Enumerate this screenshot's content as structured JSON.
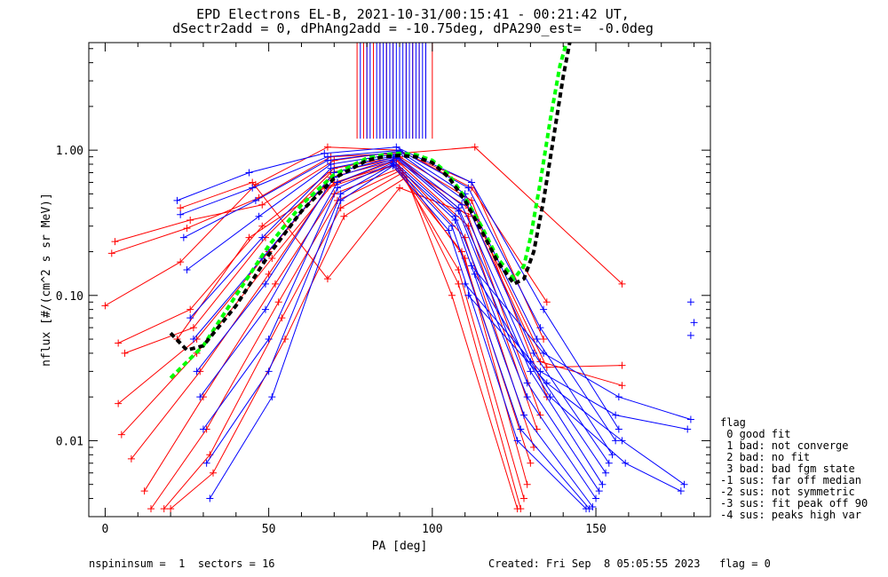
{
  "title": {
    "line1": "EPD Electrons EL-B, 2021-10-31/00:15:41 - 00:21:42 UT,",
    "line2": "dSectr2add = 0, dPhAng2add = -10.75deg, dPA290_est=  -0.0deg"
  },
  "legend": {
    "title": "flag",
    "items": [
      " 0 good fit",
      " 1 bad: not converge",
      " 2 bad: no fit",
      " 3 bad: bad fgm state",
      "-1 sus: far off median",
      "-2 sus: not symmetric",
      "-3 sus: fit peak off 90",
      "-4 sus: peaks high var"
    ]
  },
  "footer": {
    "left": "nspininsum =  1  sectors = 16",
    "right": "Created: Fri Sep  8 05:05:55 2023   flag = 0"
  },
  "colors": {
    "series_a": "#ff0000",
    "series_b": "#0000ff",
    "fit_1": "#00ff00",
    "fit_2": "#000000"
  },
  "chart_data": {
    "type": "line",
    "xlabel": "PA [deg]",
    "ylabel": "nflux [#/(cm^2 s sr MeV)]",
    "xlim": [
      -5,
      185
    ],
    "ylim": [
      0.003,
      5.5
    ],
    "yscale": "log",
    "xticks": [
      0,
      50,
      100,
      150
    ],
    "xtick_labels": [
      "0",
      "50",
      "100",
      "150"
    ],
    "yticks": [
      0.01,
      0.1,
      1.0
    ],
    "ytick_labels": [
      "0.01",
      "0.10",
      "1.00"
    ],
    "grid": false,
    "series": [
      {
        "color": "red",
        "marker": "+",
        "curves": [
          {
            "x": [
              0,
              23,
              46,
              68,
              90,
              112,
              135
            ],
            "y": [
              0.085,
              0.17,
              0.58,
              1.05,
              1.0,
              0.55,
              0.09
            ]
          },
          {
            "x": [
              2,
              25,
              47,
              69,
              90,
              113,
              158
            ],
            "y": [
              0.195,
              0.29,
              0.47,
              0.9,
              0.95,
              1.05,
              0.12
            ]
          },
          {
            "x": [
              3,
              26,
              48,
              70,
              90,
              112,
              134
            ],
            "y": [
              0.235,
              0.33,
              0.42,
              0.85,
              0.98,
              0.6,
              0.05
            ]
          },
          {
            "x": [
              4,
              26,
              48,
              70,
              90,
              112,
              135
            ],
            "y": [
              0.047,
              0.08,
              0.3,
              0.75,
              0.9,
              0.45,
              0.02
            ]
          },
          {
            "x": [
              6,
              27,
              49,
              69,
              90,
              111,
              133
            ],
            "y": [
              0.04,
              0.06,
              0.25,
              0.7,
              0.88,
              0.35,
              0.015
            ]
          },
          {
            "x": [
              4,
              28,
              50,
              69,
              89,
              111,
              132
            ],
            "y": [
              0.018,
              0.05,
              0.2,
              0.65,
              0.85,
              0.3,
              0.012
            ]
          },
          {
            "x": [
              5,
              28,
              51,
              70,
              89,
              110,
              131
            ],
            "y": [
              0.011,
              0.04,
              0.18,
              0.6,
              0.8,
              0.25,
              0.009
            ]
          },
          {
            "x": [
              8,
              29,
              50,
              68,
              88,
              109,
              130
            ],
            "y": [
              0.0075,
              0.03,
              0.14,
              0.55,
              0.78,
              0.2,
              0.007
            ]
          },
          {
            "x": [
              12,
              30,
              52,
              70,
              90,
              110,
              129
            ],
            "y": [
              0.0045,
              0.02,
              0.12,
              0.5,
              0.75,
              0.18,
              0.005
            ]
          },
          {
            "x": [
              14,
              31,
              53,
              71,
              90,
              108,
              128
            ],
            "y": [
              0.0034,
              0.012,
              0.09,
              0.45,
              0.72,
              0.15,
              0.004
            ]
          },
          {
            "x": [
              18,
              32,
              54,
              72,
              91,
              108,
              127
            ],
            "y": [
              0.0034,
              0.008,
              0.07,
              0.4,
              0.7,
              0.12,
              0.0034
            ]
          },
          {
            "x": [
              20,
              33,
              55,
              73,
              92,
              106,
              126
            ],
            "y": [
              0.0034,
              0.006,
              0.05,
              0.35,
              0.65,
              0.1,
              0.0034
            ]
          },
          {
            "x": [
              23,
              45,
              68,
              90,
              113,
              135,
              158
            ],
            "y": [
              0.4,
              0.6,
              0.13,
              0.55,
              0.35,
              0.032,
              0.033
            ]
          },
          {
            "x": [
              22,
              44,
              67,
              89,
              111,
              133,
              158
            ],
            "y": [
              0.05,
              0.25,
              0.55,
              0.85,
              0.4,
              0.035,
              0.024
            ]
          }
        ]
      },
      {
        "color": "blue",
        "marker": "+",
        "curves": [
          {
            "x": [
              22,
              44,
              67,
              89,
              112,
              134,
              157
            ],
            "y": [
              0.45,
              0.7,
              0.95,
              1.05,
              0.6,
              0.08,
              0.012
            ]
          },
          {
            "x": [
              23,
              45,
              68,
              90,
              111,
              133,
              156
            ],
            "y": [
              0.36,
              0.55,
              0.9,
              1.0,
              0.55,
              0.06,
              0.01
            ]
          },
          {
            "x": [
              24,
              46,
              68,
              90,
              110,
              132,
              155
            ],
            "y": [
              0.25,
              0.45,
              0.85,
              0.98,
              0.5,
              0.05,
              0.008
            ]
          },
          {
            "x": [
              25,
              47,
              69,
              90,
              110,
              131,
              154
            ],
            "y": [
              0.15,
              0.35,
              0.8,
              0.95,
              0.45,
              0.04,
              0.007
            ]
          },
          {
            "x": [
              26,
              48,
              69,
              89,
              109,
              130,
              153
            ],
            "y": [
              0.07,
              0.25,
              0.75,
              0.92,
              0.42,
              0.035,
              0.006
            ]
          },
          {
            "x": [
              27,
              48,
              70,
              89,
              108,
              130,
              152
            ],
            "y": [
              0.05,
              0.18,
              0.7,
              0.9,
              0.4,
              0.03,
              0.005
            ]
          },
          {
            "x": [
              28,
              49,
              70,
              89,
              108,
              129,
              151
            ],
            "y": [
              0.03,
              0.12,
              0.65,
              0.88,
              0.38,
              0.025,
              0.0045
            ]
          },
          {
            "x": [
              29,
              49,
              71,
              88,
              107,
              129,
              150
            ],
            "y": [
              0.02,
              0.08,
              0.6,
              0.85,
              0.35,
              0.02,
              0.004
            ]
          },
          {
            "x": [
              30,
              50,
              71,
              88,
              107,
              128,
              149
            ],
            "y": [
              0.012,
              0.05,
              0.55,
              0.82,
              0.33,
              0.015,
              0.0035
            ]
          },
          {
            "x": [
              31,
              50,
              72,
              88,
              106,
              127,
              148
            ],
            "y": [
              0.007,
              0.03,
              0.5,
              0.8,
              0.3,
              0.012,
              0.0034
            ]
          },
          {
            "x": [
              32,
              51,
              72,
              88,
              105,
              126,
              147
            ],
            "y": [
              0.004,
              0.02,
              0.45,
              0.78,
              0.28,
              0.01,
              0.0034
            ]
          },
          {
            "x": [
              112,
              134,
              157,
              179
            ],
            "y": [
              0.16,
              0.04,
              0.02,
              0.014
            ]
          },
          {
            "x": [
              110,
              133,
              156,
              178
            ],
            "y": [
              0.12,
              0.03,
              0.015,
              0.012
            ]
          },
          {
            "x": [
              111,
              135,
              158,
              177
            ],
            "y": [
              0.1,
              0.025,
              0.01,
              0.005
            ]
          },
          {
            "x": [
              113,
              136,
              159,
              176
            ],
            "y": [
              0.14,
              0.02,
              0.007,
              0.0045
            ]
          }
        ]
      }
    ],
    "isolated_points": {
      "color": "blue",
      "x": [
        179,
        180,
        179
      ],
      "y": [
        0.09,
        0.065,
        0.053
      ]
    },
    "fit_curves": [
      {
        "color": "green",
        "style": "dashed",
        "x": [
          20,
          30,
          40,
          50,
          60,
          70,
          80,
          85,
          90,
          95,
          100,
          105,
          110,
          115,
          120,
          125,
          128,
          130,
          133,
          136,
          139,
          141
        ],
        "y": [
          0.027,
          0.045,
          0.1,
          0.22,
          0.42,
          0.68,
          0.88,
          0.93,
          0.95,
          0.93,
          0.85,
          0.68,
          0.47,
          0.3,
          0.18,
          0.13,
          0.16,
          0.25,
          0.6,
          1.6,
          3.8,
          5.5
        ]
      },
      {
        "color": "black",
        "style": "dashed",
        "x": [
          20,
          25,
          30,
          40,
          50,
          60,
          70,
          80,
          85,
          90,
          95,
          100,
          105,
          110,
          115,
          120,
          125,
          128,
          131,
          134,
          137,
          140,
          142
        ],
        "y": [
          0.055,
          0.042,
          0.045,
          0.085,
          0.19,
          0.38,
          0.64,
          0.85,
          0.9,
          0.92,
          0.9,
          0.82,
          0.65,
          0.45,
          0.28,
          0.17,
          0.12,
          0.13,
          0.2,
          0.45,
          1.2,
          3.2,
          5.5
        ]
      }
    ],
    "saturated_ticks": {
      "y_from": 1.2,
      "y_to": 5.5,
      "red_x": [
        77,
        79,
        80,
        82,
        84,
        86,
        88,
        90,
        92,
        94,
        96,
        98,
        100
      ],
      "blue_x": [
        78,
        80,
        81,
        83,
        84,
        85,
        86,
        87,
        88,
        89,
        90,
        91,
        92,
        93,
        94,
        95,
        96,
        97,
        98
      ]
    }
  }
}
